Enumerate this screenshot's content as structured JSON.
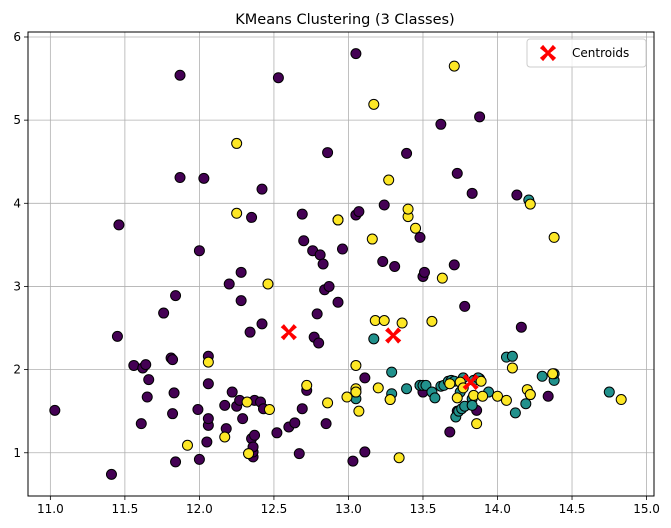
{
  "chart_data": {
    "type": "scatter",
    "title": "KMeans Clustering (3 Classes)",
    "xlabel": "",
    "ylabel": "",
    "xlim": [
      10.85,
      15.05
    ],
    "ylim": [
      0.48,
      6.06
    ],
    "xticks": [
      "11.0",
      "11.5",
      "12.0",
      "12.5",
      "13.0",
      "13.5",
      "14.0",
      "14.5",
      "15.0"
    ],
    "yticks": [
      "1",
      "2",
      "3",
      "4",
      "5",
      "6"
    ],
    "grid": true,
    "legend": {
      "placement": "top-right",
      "entries": [
        "Centroids"
      ]
    },
    "colors": {
      "class0": "#440154",
      "class1": "#21918c",
      "class2": "#fde725",
      "centroid": "#ff0000",
      "grid": "#b0b0b0"
    },
    "series": [
      {
        "class": 0,
        "points": [
          [
            11.03,
            1.51
          ],
          [
            11.41,
            0.74
          ],
          [
            11.45,
            2.4
          ],
          [
            11.46,
            3.74
          ],
          [
            11.56,
            2.05
          ],
          [
            11.61,
            1.35
          ],
          [
            11.62,
            2.02
          ],
          [
            11.64,
            2.06
          ],
          [
            11.65,
            1.67
          ],
          [
            11.66,
            1.88
          ],
          [
            11.76,
            2.68
          ],
          [
            11.81,
            2.14
          ],
          [
            11.82,
            2.12
          ],
          [
            11.82,
            1.47
          ],
          [
            11.83,
            1.72
          ],
          [
            11.84,
            2.89
          ],
          [
            11.84,
            0.89
          ],
          [
            11.87,
            4.31
          ],
          [
            11.87,
            5.54
          ],
          [
            11.99,
            1.52
          ],
          [
            12.0,
            3.43
          ],
          [
            12.0,
            0.92
          ],
          [
            12.03,
            4.3
          ],
          [
            12.05,
            1.13
          ],
          [
            12.06,
            1.33
          ],
          [
            12.06,
            1.41
          ],
          [
            12.06,
            1.83
          ],
          [
            12.06,
            2.16
          ],
          [
            12.17,
            1.57
          ],
          [
            12.18,
            1.29
          ],
          [
            12.2,
            3.03
          ],
          [
            12.22,
            1.73
          ],
          [
            12.25,
            1.56
          ],
          [
            12.27,
            1.63
          ],
          [
            12.28,
            2.83
          ],
          [
            12.28,
            3.17
          ],
          [
            12.29,
            1.41
          ],
          [
            12.33,
            0.99
          ],
          [
            12.34,
            2.45
          ],
          [
            12.35,
            1.17
          ],
          [
            12.35,
            3.83
          ],
          [
            12.36,
            0.95
          ],
          [
            12.36,
            1.01
          ],
          [
            12.36,
            1.07
          ],
          [
            12.37,
            1.21
          ],
          [
            12.37,
            1.63
          ],
          [
            12.41,
            1.61
          ],
          [
            12.42,
            4.17
          ],
          [
            12.42,
            2.55
          ],
          [
            12.43,
            1.53
          ],
          [
            12.52,
            1.24
          ],
          [
            12.53,
            5.51
          ],
          [
            12.6,
            1.31
          ],
          [
            12.64,
            1.36
          ],
          [
            12.67,
            0.99
          ],
          [
            12.69,
            1.53
          ],
          [
            12.69,
            3.87
          ],
          [
            12.7,
            3.55
          ],
          [
            12.72,
            1.75
          ],
          [
            12.76,
            3.43
          ],
          [
            12.77,
            2.39
          ],
          [
            12.79,
            2.67
          ],
          [
            12.8,
            2.32
          ],
          [
            12.81,
            3.38
          ],
          [
            12.83,
            3.27
          ],
          [
            12.84,
            2.96
          ],
          [
            12.85,
            1.35
          ],
          [
            12.86,
            4.61
          ],
          [
            12.87,
            3.0
          ],
          [
            12.93,
            2.81
          ],
          [
            12.93,
            3.8
          ],
          [
            12.96,
            3.45
          ],
          [
            13.03,
            0.9
          ],
          [
            13.05,
            3.86
          ],
          [
            13.05,
            5.8
          ],
          [
            13.07,
            3.9
          ],
          [
            13.11,
            1.01
          ],
          [
            13.11,
            1.9
          ],
          [
            13.23,
            3.3
          ],
          [
            13.24,
            3.98
          ],
          [
            13.28,
            1.64
          ],
          [
            13.31,
            3.24
          ],
          [
            13.39,
            4.6
          ],
          [
            13.48,
            1.81
          ],
          [
            13.48,
            3.59
          ],
          [
            13.5,
            1.73
          ],
          [
            13.5,
            3.12
          ],
          [
            13.51,
            3.17
          ],
          [
            13.62,
            4.95
          ],
          [
            13.68,
            1.25
          ],
          [
            13.71,
            3.26
          ],
          [
            13.73,
            4.36
          ],
          [
            13.73,
            1.5
          ],
          [
            13.78,
            2.76
          ],
          [
            13.83,
            4.12
          ],
          [
            13.86,
            1.51
          ],
          [
            13.88,
            5.04
          ],
          [
            13.88,
            1.89
          ],
          [
            14.13,
            4.1
          ],
          [
            14.16,
            2.51
          ],
          [
            14.34,
            1.68
          ]
        ]
      },
      {
        "class": 1,
        "points": [
          [
            13.05,
            1.65
          ],
          [
            13.05,
            1.73
          ],
          [
            13.17,
            2.37
          ],
          [
            13.29,
            1.97
          ],
          [
            13.29,
            1.71
          ],
          [
            13.39,
            1.77
          ],
          [
            13.48,
            1.81
          ],
          [
            13.5,
            1.81
          ],
          [
            13.52,
            1.81
          ],
          [
            13.56,
            1.73
          ],
          [
            13.58,
            1.66
          ],
          [
            13.62,
            1.8
          ],
          [
            13.64,
            1.81
          ],
          [
            13.67,
            1.86
          ],
          [
            13.69,
            1.87
          ],
          [
            13.71,
            1.86
          ],
          [
            13.72,
            1.43
          ],
          [
            13.74,
            1.5
          ],
          [
            13.75,
            1.73
          ],
          [
            13.76,
            1.53
          ],
          [
            13.77,
            1.9
          ],
          [
            13.78,
            1.56
          ],
          [
            13.83,
            1.65
          ],
          [
            13.83,
            1.57
          ],
          [
            13.84,
            1.87
          ],
          [
            13.87,
            1.9
          ],
          [
            13.94,
            1.73
          ],
          [
            14.06,
            2.15
          ],
          [
            14.1,
            2.16
          ],
          [
            14.12,
            1.48
          ],
          [
            14.19,
            1.59
          ],
          [
            14.21,
            4.04
          ],
          [
            14.22,
            1.7
          ],
          [
            14.3,
            1.92
          ],
          [
            14.38,
            1.87
          ],
          [
            14.38,
            1.95
          ],
          [
            14.75,
            1.73
          ]
        ]
      },
      {
        "class": 2,
        "points": [
          [
            11.92,
            1.09
          ],
          [
            12.06,
            2.09
          ],
          [
            12.17,
            1.19
          ],
          [
            12.25,
            4.72
          ],
          [
            12.25,
            3.88
          ],
          [
            12.32,
            1.61
          ],
          [
            12.33,
            0.99
          ],
          [
            12.46,
            3.03
          ],
          [
            12.47,
            1.52
          ],
          [
            12.72,
            1.81
          ],
          [
            12.86,
            1.6
          ],
          [
            12.93,
            3.8
          ],
          [
            12.99,
            1.67
          ],
          [
            13.05,
            1.77
          ],
          [
            13.05,
            1.73
          ],
          [
            13.05,
            2.05
          ],
          [
            13.07,
            1.5
          ],
          [
            13.16,
            3.57
          ],
          [
            13.17,
            5.19
          ],
          [
            13.18,
            2.59
          ],
          [
            13.2,
            1.78
          ],
          [
            13.24,
            2.59
          ],
          [
            13.27,
            4.28
          ],
          [
            13.28,
            1.64
          ],
          [
            13.34,
            0.94
          ],
          [
            13.36,
            2.56
          ],
          [
            13.4,
            3.84
          ],
          [
            13.4,
            3.93
          ],
          [
            13.45,
            3.7
          ],
          [
            13.56,
            2.58
          ],
          [
            13.63,
            3.1
          ],
          [
            13.68,
            1.83
          ],
          [
            13.71,
            5.65
          ],
          [
            13.73,
            1.66
          ],
          [
            13.75,
            1.85
          ],
          [
            13.77,
            1.78
          ],
          [
            13.84,
            1.69
          ],
          [
            13.86,
            1.35
          ],
          [
            13.89,
            1.86
          ],
          [
            13.9,
            1.68
          ],
          [
            14.0,
            1.68
          ],
          [
            14.06,
            1.63
          ],
          [
            14.1,
            2.02
          ],
          [
            14.2,
            1.76
          ],
          [
            14.22,
            1.7
          ],
          [
            14.22,
            3.99
          ],
          [
            14.37,
            1.95
          ],
          [
            14.38,
            3.59
          ],
          [
            14.83,
            1.64
          ]
        ]
      }
    ],
    "centroids": [
      [
        12.6,
        2.45
      ],
      [
        13.3,
        2.41
      ],
      [
        13.82,
        1.85
      ]
    ]
  }
}
